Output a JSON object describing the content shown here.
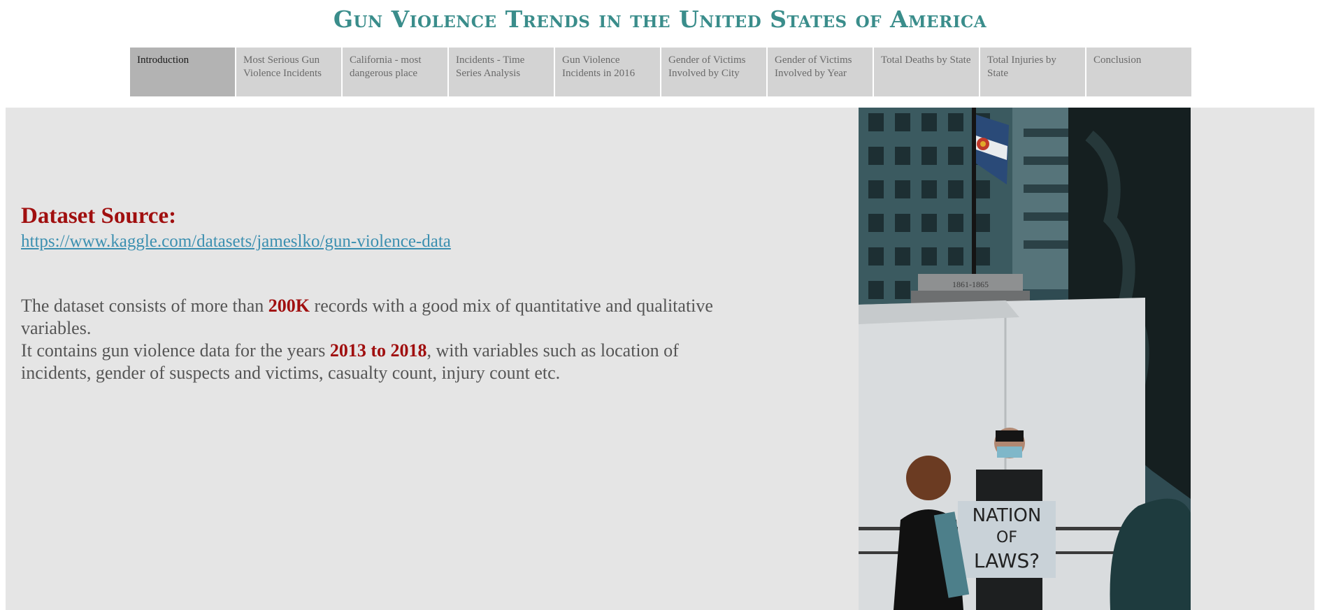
{
  "header": {
    "title": "Gun Violence Trends in the United States of America"
  },
  "tabs": [
    {
      "label": "Introduction",
      "active": true
    },
    {
      "label": "Most Serious Gun Violence Incidents",
      "active": false
    },
    {
      "label": "California - most dangerous place",
      "active": false
    },
    {
      "label": "Incidents - Time Series Analysis",
      "active": false
    },
    {
      "label": "Gun Violence Incidents in 2016",
      "active": false
    },
    {
      "label": "Gender of Victims Involved by City",
      "active": false
    },
    {
      "label": "Gender of Victims Involved by Year",
      "active": false
    },
    {
      "label": "Total Deaths by State",
      "active": false
    },
    {
      "label": "Total Injuries by State",
      "active": false
    },
    {
      "label": "Conclusion",
      "active": false
    }
  ],
  "main": {
    "source_heading": "Dataset Source:",
    "source_link": "https://www.kaggle.com/datasets/jameslko/gun-violence-data",
    "desc_part1": "The dataset consists of more than ",
    "desc_highlight1": "200K",
    "desc_part2": " records with a good mix of quantitative and qualitative variables.",
    "desc_part3": "It contains gun violence data for the years ",
    "desc_highlight2": "2013 to 2018",
    "desc_part4": ", with variables such as location of incidents, gender of suspects and victims, casualty count, injury count etc."
  },
  "photo": {
    "sign_line1": "NATION",
    "sign_line2": "OF",
    "sign_line3": "LAWS?",
    "monument_text": "1861-1865"
  },
  "colors": {
    "title": "#3a8d8b",
    "highlight": "#a00f0f",
    "link": "#3b8fb0",
    "content_bg": "#e5e5e5",
    "tab_bg": "#d3d3d3",
    "tab_active_bg": "#b3b3b3"
  }
}
